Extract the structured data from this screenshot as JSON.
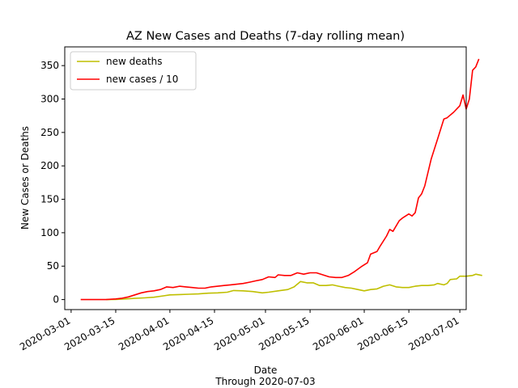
{
  "chart_data": {
    "type": "line",
    "title": "AZ New Cases and Deaths (7-day rolling mean)",
    "xlabel": "Date",
    "xlabel_sub": "Through 2020-07-03",
    "ylabel": "New Cases or Deaths",
    "xlim": [
      "2020-02-28",
      "2020-07-03"
    ],
    "ylim": [
      -15,
      378
    ],
    "x_ticks": [
      "2020-03-01",
      "2020-03-15",
      "2020-04-01",
      "2020-04-15",
      "2020-05-01",
      "2020-05-15",
      "2020-06-01",
      "2020-06-15",
      "2020-07-01"
    ],
    "y_ticks": [
      0,
      50,
      100,
      150,
      200,
      250,
      300,
      350
    ],
    "grid": false,
    "legend_position": "upper-left",
    "colors": {
      "series_0": "#bfbf00",
      "series_1": "#ff0000"
    },
    "series": [
      {
        "name": "new deaths",
        "color": "#bfbf00",
        "points": [
          [
            "2020-03-12",
            0
          ],
          [
            "2020-03-15",
            0.2
          ],
          [
            "2020-03-18",
            1
          ],
          [
            "2020-03-21",
            1.8
          ],
          [
            "2020-03-24",
            2.5
          ],
          [
            "2020-03-27",
            3.5
          ],
          [
            "2020-03-30",
            5.5
          ],
          [
            "2020-04-01",
            7
          ],
          [
            "2020-04-04",
            7.5
          ],
          [
            "2020-04-07",
            8
          ],
          [
            "2020-04-10",
            8.5
          ],
          [
            "2020-04-13",
            9.5
          ],
          [
            "2020-04-16",
            10
          ],
          [
            "2020-04-19",
            11
          ],
          [
            "2020-04-21",
            13.5
          ],
          [
            "2020-04-24",
            13
          ],
          [
            "2020-04-27",
            12
          ],
          [
            "2020-04-30",
            10
          ],
          [
            "2020-05-02",
            11
          ],
          [
            "2020-05-05",
            13
          ],
          [
            "2020-05-08",
            15
          ],
          [
            "2020-05-10",
            19
          ],
          [
            "2020-05-12",
            27
          ],
          [
            "2020-05-14",
            25
          ],
          [
            "2020-05-16",
            25
          ],
          [
            "2020-05-18",
            21
          ],
          [
            "2020-05-20",
            21
          ],
          [
            "2020-05-22",
            22
          ],
          [
            "2020-05-24",
            20
          ],
          [
            "2020-05-26",
            18
          ],
          [
            "2020-05-28",
            17
          ],
          [
            "2020-05-30",
            15
          ],
          [
            "2020-06-01",
            13
          ],
          [
            "2020-06-03",
            15
          ],
          [
            "2020-06-05",
            16
          ],
          [
            "2020-06-07",
            20
          ],
          [
            "2020-06-09",
            22
          ],
          [
            "2020-06-11",
            19
          ],
          [
            "2020-06-13",
            18
          ],
          [
            "2020-06-15",
            18
          ],
          [
            "2020-06-17",
            20
          ],
          [
            "2020-06-19",
            21
          ],
          [
            "2020-06-21",
            21
          ],
          [
            "2020-06-23",
            22
          ],
          [
            "2020-06-24",
            24
          ],
          [
            "2020-06-26",
            22
          ],
          [
            "2020-06-27",
            24
          ],
          [
            "2020-06-28",
            30
          ],
          [
            "2020-06-30",
            31
          ],
          [
            "2020-07-01",
            35
          ],
          [
            "2020-07-03",
            35
          ],
          [
            "2020-07-05",
            36
          ],
          [
            "2020-07-06",
            38
          ],
          [
            "2020-07-08",
            36
          ]
        ]
      },
      {
        "name": "new cases / 10",
        "color": "#ff0000",
        "points": [
          [
            "2020-03-04",
            0
          ],
          [
            "2020-03-08",
            0
          ],
          [
            "2020-03-12",
            0
          ],
          [
            "2020-03-15",
            1
          ],
          [
            "2020-03-17",
            2
          ],
          [
            "2020-03-19",
            4
          ],
          [
            "2020-03-21",
            7
          ],
          [
            "2020-03-23",
            10
          ],
          [
            "2020-03-25",
            12
          ],
          [
            "2020-03-27",
            13
          ],
          [
            "2020-03-29",
            15
          ],
          [
            "2020-03-31",
            19
          ],
          [
            "2020-04-02",
            18
          ],
          [
            "2020-04-04",
            20
          ],
          [
            "2020-04-06",
            19
          ],
          [
            "2020-04-08",
            18
          ],
          [
            "2020-04-10",
            17
          ],
          [
            "2020-04-12",
            17
          ],
          [
            "2020-04-14",
            19
          ],
          [
            "2020-04-16",
            20
          ],
          [
            "2020-04-18",
            21
          ],
          [
            "2020-04-20",
            22
          ],
          [
            "2020-04-22",
            23
          ],
          [
            "2020-04-24",
            24
          ],
          [
            "2020-04-26",
            26
          ],
          [
            "2020-04-28",
            28
          ],
          [
            "2020-04-30",
            30
          ],
          [
            "2020-05-02",
            34
          ],
          [
            "2020-05-04",
            33
          ],
          [
            "2020-05-05",
            37
          ],
          [
            "2020-05-07",
            36
          ],
          [
            "2020-05-09",
            36
          ],
          [
            "2020-05-11",
            40
          ],
          [
            "2020-05-13",
            38
          ],
          [
            "2020-05-15",
            40
          ],
          [
            "2020-05-17",
            40
          ],
          [
            "2020-05-19",
            37
          ],
          [
            "2020-05-21",
            34
          ],
          [
            "2020-05-23",
            33
          ],
          [
            "2020-05-25",
            33
          ],
          [
            "2020-05-27",
            36
          ],
          [
            "2020-05-29",
            42
          ],
          [
            "2020-05-31",
            49
          ],
          [
            "2020-06-02",
            55
          ],
          [
            "2020-06-03",
            68
          ],
          [
            "2020-06-05",
            72
          ],
          [
            "2020-06-06",
            80
          ],
          [
            "2020-06-08",
            95
          ],
          [
            "2020-06-09",
            105
          ],
          [
            "2020-06-10",
            102
          ],
          [
            "2020-06-12",
            118
          ],
          [
            "2020-06-13",
            122
          ],
          [
            "2020-06-15",
            128
          ],
          [
            "2020-06-16",
            125
          ],
          [
            "2020-06-17",
            130
          ],
          [
            "2020-06-18",
            152
          ],
          [
            "2020-06-19",
            158
          ],
          [
            "2020-06-20",
            170
          ],
          [
            "2020-06-22",
            210
          ],
          [
            "2020-06-24",
            240
          ],
          [
            "2020-06-26",
            270
          ],
          [
            "2020-06-27",
            272
          ],
          [
            "2020-06-29",
            280
          ],
          [
            "2020-07-01",
            290
          ],
          [
            "2020-07-02",
            306
          ],
          [
            "2020-07-03",
            285
          ],
          [
            "2020-07-04",
            300
          ],
          [
            "2020-07-05",
            343
          ],
          [
            "2020-07-06",
            348
          ],
          [
            "2020-07-07",
            360
          ]
        ]
      }
    ]
  }
}
